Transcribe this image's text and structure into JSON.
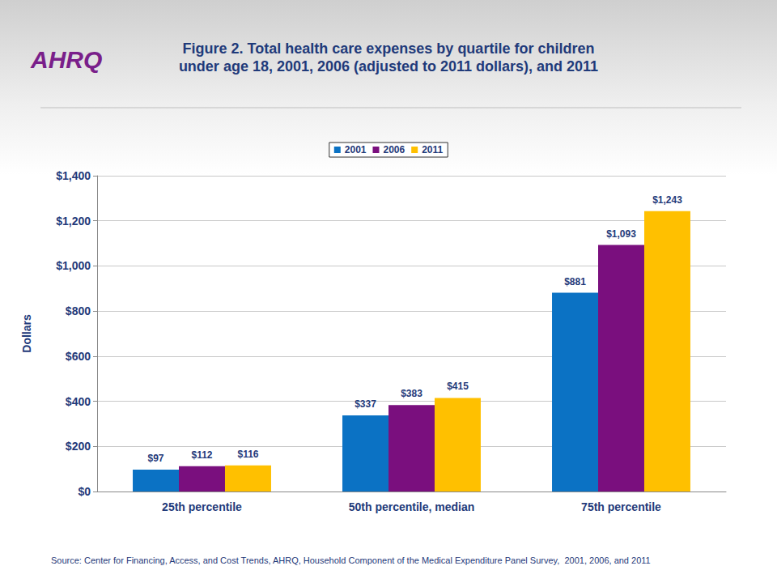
{
  "chart_data": {
    "type": "bar",
    "logo": "AHRQ",
    "title": "Figure 2. Total health care expenses by quartile for children\nunder age 18, 2001, 2006 (adjusted to 2011 dollars), and 2011",
    "y_label": "Dollars",
    "source": "Source: Center for Financing, Access, and Cost Trends, AHRQ, Household Component of the Medical Expenditure Panel Survey,  2001, 2006, and 2011",
    "categories": [
      "25th percentile",
      "50th percentile, median",
      "75th percentile"
    ],
    "series": [
      {
        "name": "2001",
        "color": "#0b72c4",
        "values": [
          97,
          337,
          881
        ],
        "value_labels": [
          "$97",
          "$337",
          "$881"
        ]
      },
      {
        "name": "2006",
        "color": "#7a0f7e",
        "values": [
          112,
          383,
          1093
        ],
        "value_labels": [
          "$112",
          "$383",
          "$1,093"
        ]
      },
      {
        "name": "2011",
        "color": "#ffc000",
        "values": [
          116,
          415,
          1243
        ],
        "value_labels": [
          "$116",
          "$415",
          "$1,243"
        ]
      }
    ],
    "ylim": [
      0,
      1400
    ],
    "yticks": [
      {
        "value": 0,
        "label": "$0"
      },
      {
        "value": 200,
        "label": "$200"
      },
      {
        "value": 400,
        "label": "$400"
      },
      {
        "value": 600,
        "label": "$600"
      },
      {
        "value": 800,
        "label": "$800"
      },
      {
        "value": 1000,
        "label": "$1,000"
      },
      {
        "value": 1200,
        "label": "$1,200"
      },
      {
        "value": 1400,
        "label": "$1,400"
      }
    ],
    "grid": true,
    "legend": "top",
    "data_labels": true
  }
}
